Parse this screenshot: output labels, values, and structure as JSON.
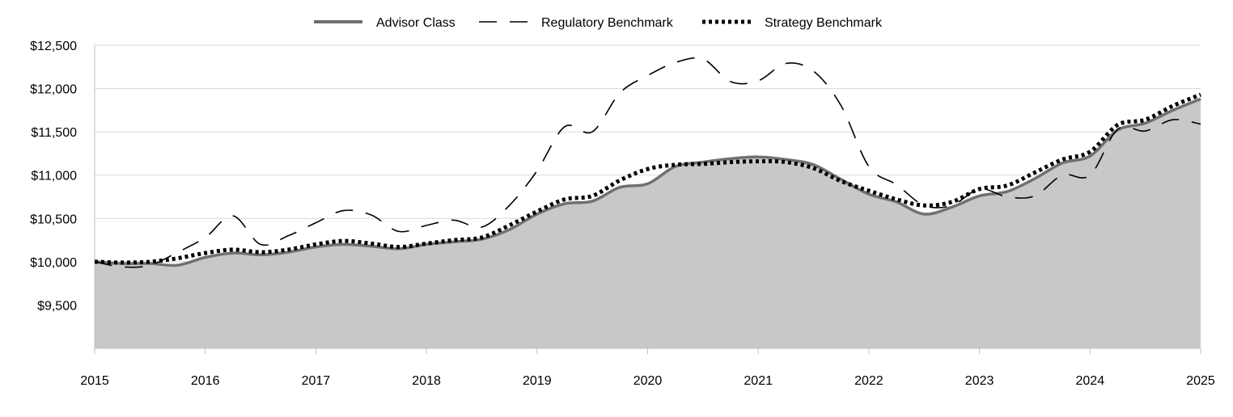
{
  "chart_data": {
    "type": "line",
    "title": "",
    "xlabel": "",
    "ylabel": "",
    "xlim": [
      2015,
      2025
    ],
    "ylim": [
      9000,
      12500
    ],
    "y_ticks": [
      9500,
      10000,
      10500,
      11000,
      11500,
      12000,
      12500
    ],
    "y_tick_labels": [
      "$9,500",
      "$10,000",
      "$10,500",
      "$11,000",
      "$11,500",
      "$12,000",
      "$12,500"
    ],
    "x_ticks": [
      2015,
      2016,
      2017,
      2018,
      2019,
      2020,
      2021,
      2022,
      2023,
      2024,
      2025
    ],
    "x_tick_labels": [
      "2015",
      "2016",
      "2017",
      "2018",
      "2019",
      "2020",
      "2021",
      "2022",
      "2023",
      "2024",
      "2025"
    ],
    "grid": "horizontal",
    "legend_position": "top-center",
    "series": [
      {
        "name": "Advisor Class",
        "style": "solid-area",
        "color": "#707070",
        "fill": "#c8c8c8",
        "points": [
          [
            2015,
            10000
          ],
          [
            2015.25,
            9980
          ],
          [
            2015.5,
            9980
          ],
          [
            2015.75,
            9960
          ],
          [
            2016,
            10050
          ],
          [
            2016.25,
            10100
          ],
          [
            2016.5,
            10080
          ],
          [
            2016.75,
            10110
          ],
          [
            2017,
            10170
          ],
          [
            2017.25,
            10200
          ],
          [
            2017.5,
            10180
          ],
          [
            2017.75,
            10150
          ],
          [
            2018,
            10200
          ],
          [
            2018.25,
            10230
          ],
          [
            2018.5,
            10260
          ],
          [
            2018.75,
            10370
          ],
          [
            2019,
            10550
          ],
          [
            2019.25,
            10670
          ],
          [
            2019.5,
            10700
          ],
          [
            2019.75,
            10860
          ],
          [
            2020,
            10900
          ],
          [
            2020.25,
            11100
          ],
          [
            2020.5,
            11150
          ],
          [
            2020.75,
            11190
          ],
          [
            2021,
            11210
          ],
          [
            2021.25,
            11180
          ],
          [
            2021.5,
            11120
          ],
          [
            2021.75,
            10950
          ],
          [
            2022,
            10780
          ],
          [
            2022.25,
            10690
          ],
          [
            2022.5,
            10550
          ],
          [
            2022.75,
            10630
          ],
          [
            2023,
            10760
          ],
          [
            2023.25,
            10810
          ],
          [
            2023.5,
            10960
          ],
          [
            2023.75,
            11140
          ],
          [
            2024,
            11220
          ],
          [
            2024.25,
            11520
          ],
          [
            2024.5,
            11600
          ],
          [
            2024.75,
            11750
          ],
          [
            2025,
            11880
          ]
        ]
      },
      {
        "name": "Regulatory Benchmark",
        "style": "dashed",
        "color": "#000000",
        "points": [
          [
            2015,
            10000
          ],
          [
            2015.25,
            9940
          ],
          [
            2015.5,
            9960
          ],
          [
            2015.75,
            10110
          ],
          [
            2016,
            10280
          ],
          [
            2016.25,
            10530
          ],
          [
            2016.5,
            10200
          ],
          [
            2016.75,
            10300
          ],
          [
            2017,
            10450
          ],
          [
            2017.25,
            10590
          ],
          [
            2017.5,
            10540
          ],
          [
            2017.75,
            10350
          ],
          [
            2018,
            10420
          ],
          [
            2018.25,
            10480
          ],
          [
            2018.5,
            10400
          ],
          [
            2018.75,
            10650
          ],
          [
            2019,
            11050
          ],
          [
            2019.25,
            11560
          ],
          [
            2019.5,
            11500
          ],
          [
            2019.75,
            11950
          ],
          [
            2020,
            12150
          ],
          [
            2020.25,
            12300
          ],
          [
            2020.5,
            12340
          ],
          [
            2020.75,
            12080
          ],
          [
            2021,
            12090
          ],
          [
            2021.25,
            12290
          ],
          [
            2021.5,
            12200
          ],
          [
            2021.75,
            11800
          ],
          [
            2022,
            11100
          ],
          [
            2022.25,
            10890
          ],
          [
            2022.5,
            10650
          ],
          [
            2022.75,
            10650
          ],
          [
            2023,
            10840
          ],
          [
            2023.25,
            10750
          ],
          [
            2023.5,
            10760
          ],
          [
            2023.75,
            11000
          ],
          [
            2024,
            11000
          ],
          [
            2024.25,
            11530
          ],
          [
            2024.5,
            11510
          ],
          [
            2024.75,
            11640
          ],
          [
            2025,
            11590
          ]
        ]
      },
      {
        "name": "Strategy Benchmark",
        "style": "dotted",
        "color": "#000000",
        "points": [
          [
            2015,
            10000
          ],
          [
            2015.25,
            9990
          ],
          [
            2015.5,
            10000
          ],
          [
            2015.75,
            10040
          ],
          [
            2016,
            10100
          ],
          [
            2016.25,
            10140
          ],
          [
            2016.5,
            10110
          ],
          [
            2016.75,
            10140
          ],
          [
            2017,
            10200
          ],
          [
            2017.25,
            10240
          ],
          [
            2017.5,
            10210
          ],
          [
            2017.75,
            10170
          ],
          [
            2018,
            10210
          ],
          [
            2018.25,
            10250
          ],
          [
            2018.5,
            10280
          ],
          [
            2018.75,
            10420
          ],
          [
            2019,
            10580
          ],
          [
            2019.25,
            10720
          ],
          [
            2019.5,
            10760
          ],
          [
            2019.75,
            10940
          ],
          [
            2020,
            11070
          ],
          [
            2020.25,
            11120
          ],
          [
            2020.5,
            11130
          ],
          [
            2020.75,
            11150
          ],
          [
            2021,
            11160
          ],
          [
            2021.25,
            11150
          ],
          [
            2021.5,
            11080
          ],
          [
            2021.75,
            10930
          ],
          [
            2022,
            10820
          ],
          [
            2022.25,
            10720
          ],
          [
            2022.5,
            10650
          ],
          [
            2022.75,
            10690
          ],
          [
            2023,
            10840
          ],
          [
            2023.25,
            10880
          ],
          [
            2023.5,
            11030
          ],
          [
            2023.75,
            11180
          ],
          [
            2024,
            11270
          ],
          [
            2024.25,
            11580
          ],
          [
            2024.5,
            11640
          ],
          [
            2024.75,
            11800
          ],
          [
            2025,
            11930
          ]
        ]
      }
    ]
  }
}
